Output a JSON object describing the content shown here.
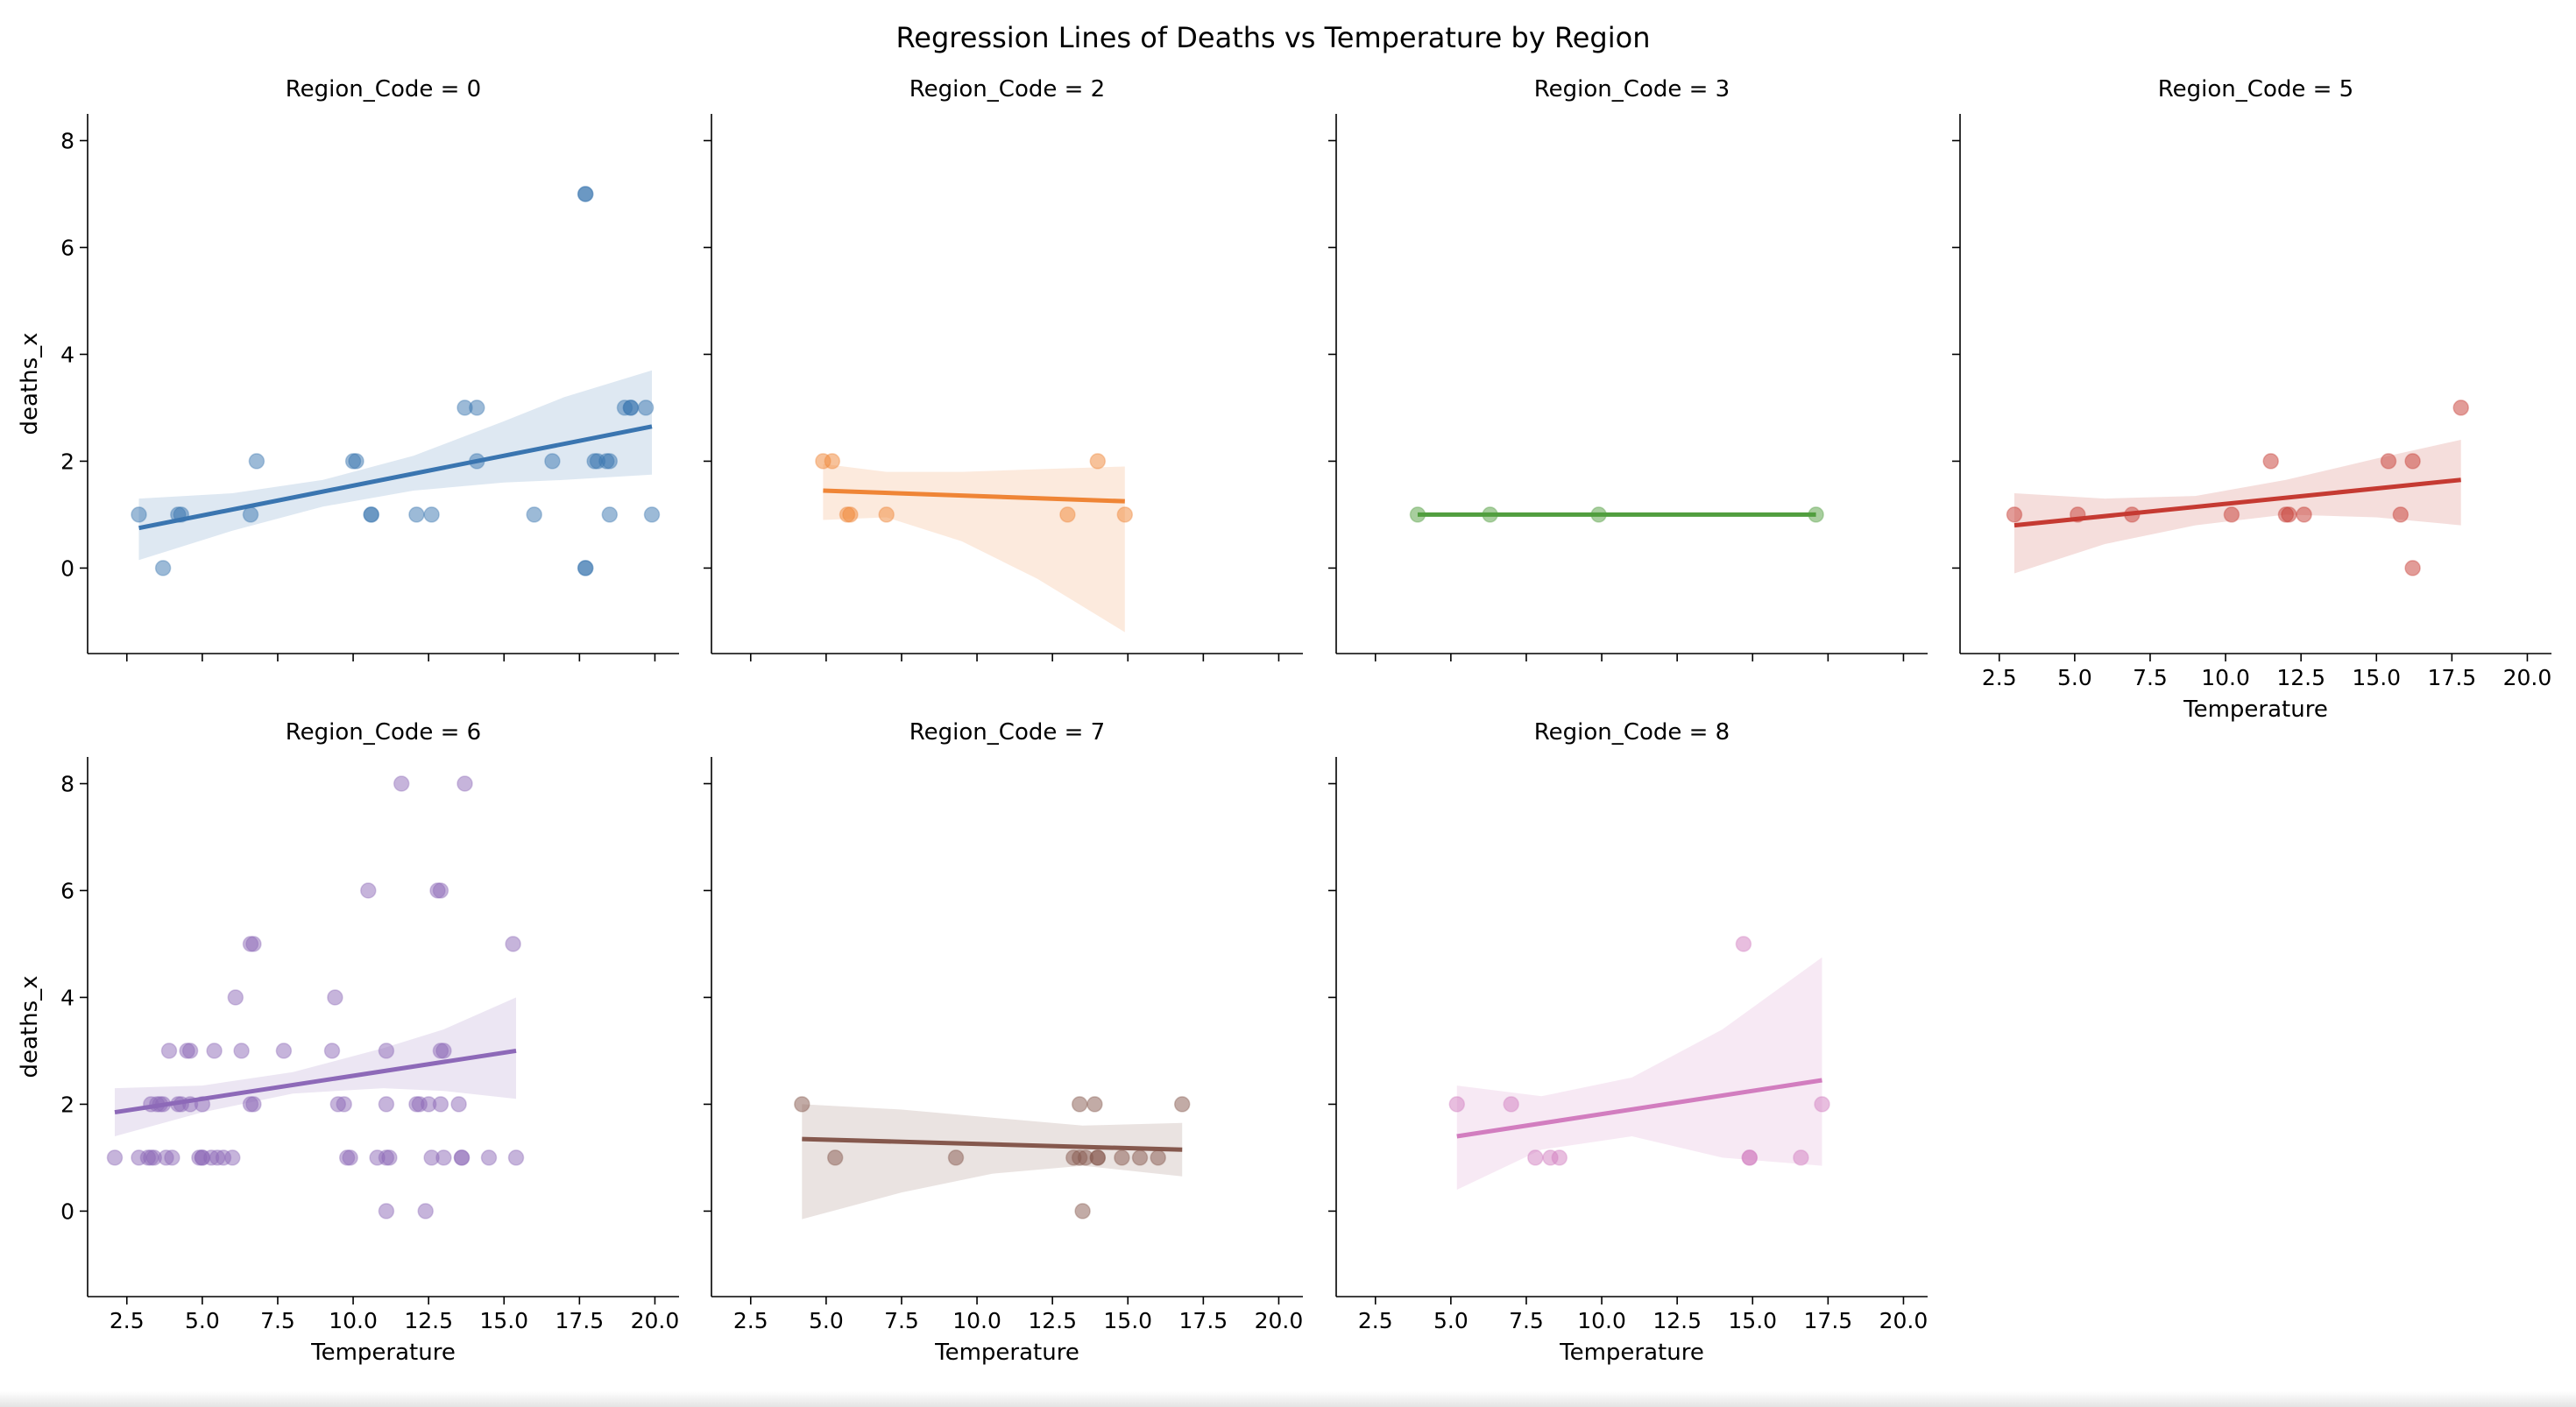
{
  "title": "Regression Lines of Deaths vs Temperature by Region",
  "xlabel": "Temperature",
  "ylabel": "deaths_x",
  "chart_data": {
    "type": "scatter",
    "title": "Regression Lines of Deaths vs Temperature by Region",
    "xlabel": "Temperature",
    "ylabel": "deaths_x",
    "xlim": [
      1.2,
      20.8
    ],
    "ylim": [
      -1.6,
      8.5
    ],
    "xticks": [
      "2.5",
      "5.0",
      "7.5",
      "10.0",
      "12.5",
      "15.0",
      "17.5",
      "20.0"
    ],
    "yticks": [
      "0",
      "2",
      "4",
      "6",
      "8"
    ],
    "grid": false,
    "legend": "none",
    "panels": [
      {
        "label": "Region_Code = 0",
        "color": "#3a75b0",
        "points": [
          [
            2.9,
            1
          ],
          [
            3.7,
            0
          ],
          [
            4.2,
            1
          ],
          [
            4.3,
            1
          ],
          [
            6.6,
            1
          ],
          [
            6.8,
            2
          ],
          [
            10.0,
            2
          ],
          [
            10.1,
            2
          ],
          [
            10.6,
            1
          ],
          [
            10.6,
            1
          ],
          [
            12.1,
            1
          ],
          [
            12.6,
            1
          ],
          [
            13.7,
            3
          ],
          [
            14.1,
            3
          ],
          [
            14.1,
            2
          ],
          [
            16.0,
            1
          ],
          [
            16.6,
            2
          ],
          [
            17.7,
            7
          ],
          [
            17.7,
            7
          ],
          [
            17.7,
            0
          ],
          [
            17.7,
            0
          ],
          [
            18.0,
            2
          ],
          [
            18.1,
            2
          ],
          [
            18.4,
            2
          ],
          [
            18.5,
            2
          ],
          [
            18.5,
            1
          ],
          [
            19.0,
            3
          ],
          [
            19.2,
            3
          ],
          [
            19.2,
            3
          ],
          [
            19.7,
            3
          ],
          [
            19.9,
            1
          ]
        ],
        "regression": {
          "x": [
            2.9,
            19.9
          ],
          "y": [
            0.75,
            2.65
          ]
        },
        "ci": {
          "x": [
            2.9,
            6.0,
            9.0,
            12.0,
            15.0,
            17.0,
            19.9
          ],
          "lower": [
            0.15,
            0.7,
            1.15,
            1.45,
            1.6,
            1.65,
            1.75
          ],
          "upper": [
            1.3,
            1.4,
            1.65,
            2.1,
            2.75,
            3.2,
            3.7
          ]
        }
      },
      {
        "label": "Region_Code = 2",
        "color": "#ef8536",
        "points": [
          [
            4.9,
            2
          ],
          [
            5.2,
            2
          ],
          [
            5.7,
            1
          ],
          [
            5.8,
            1
          ],
          [
            7.0,
            1
          ],
          [
            13.0,
            1
          ],
          [
            14.0,
            2
          ],
          [
            14.9,
            1
          ]
        ],
        "regression": {
          "x": [
            4.9,
            14.9
          ],
          "y": [
            1.45,
            1.25
          ]
        },
        "ci": {
          "x": [
            4.9,
            7.0,
            9.5,
            12.0,
            14.9
          ],
          "lower": [
            0.9,
            0.95,
            0.5,
            -0.2,
            -1.2
          ],
          "upper": [
            1.95,
            1.8,
            1.8,
            1.85,
            1.9
          ]
        }
      },
      {
        "label": "Region_Code = 3",
        "color": "#519e3e",
        "points": [
          [
            3.9,
            1
          ],
          [
            6.3,
            1
          ],
          [
            9.9,
            1
          ],
          [
            17.1,
            1
          ]
        ],
        "regression": {
          "x": [
            3.9,
            17.1
          ],
          "y": [
            1.0,
            1.0
          ]
        },
        "ci": {
          "x": [
            3.9,
            17.1
          ],
          "lower": [
            0.98,
            0.98
          ],
          "upper": [
            1.02,
            1.02
          ]
        }
      },
      {
        "label": "Region_Code = 5",
        "color": "#c53a32",
        "points": [
          [
            3.0,
            1
          ],
          [
            5.1,
            1
          ],
          [
            6.9,
            1
          ],
          [
            10.2,
            1
          ],
          [
            11.5,
            2
          ],
          [
            12.0,
            1
          ],
          [
            12.1,
            1
          ],
          [
            12.6,
            1
          ],
          [
            15.4,
            2
          ],
          [
            15.8,
            1
          ],
          [
            16.2,
            2
          ],
          [
            16.2,
            0
          ],
          [
            17.8,
            3
          ]
        ],
        "regression": {
          "x": [
            3.0,
            17.8
          ],
          "y": [
            0.8,
            1.65
          ]
        },
        "ci": {
          "x": [
            3.0,
            6.0,
            9.0,
            12.0,
            15.0,
            17.8
          ],
          "lower": [
            -0.1,
            0.45,
            0.8,
            1.0,
            0.95,
            0.8
          ],
          "upper": [
            1.4,
            1.3,
            1.35,
            1.65,
            2.05,
            2.4
          ]
        }
      },
      {
        "label": "Region_Code = 6",
        "color": "#8d69b8",
        "points": [
          [
            2.1,
            1
          ],
          [
            2.9,
            1
          ],
          [
            3.2,
            1
          ],
          [
            3.3,
            2
          ],
          [
            3.3,
            1
          ],
          [
            3.4,
            1
          ],
          [
            3.5,
            2
          ],
          [
            3.6,
            2
          ],
          [
            3.7,
            2
          ],
          [
            3.8,
            1
          ],
          [
            3.9,
            3
          ],
          [
            4.0,
            1
          ],
          [
            4.2,
            2
          ],
          [
            4.3,
            2
          ],
          [
            4.5,
            3
          ],
          [
            4.6,
            2
          ],
          [
            4.6,
            3
          ],
          [
            4.9,
            1
          ],
          [
            5.0,
            1
          ],
          [
            5.0,
            1
          ],
          [
            5.0,
            2
          ],
          [
            5.3,
            1
          ],
          [
            5.4,
            3
          ],
          [
            5.5,
            1
          ],
          [
            5.7,
            1
          ],
          [
            6.0,
            1
          ],
          [
            6.1,
            4
          ],
          [
            6.3,
            3
          ],
          [
            6.6,
            5
          ],
          [
            6.6,
            2
          ],
          [
            6.7,
            2
          ],
          [
            6.7,
            5
          ],
          [
            7.7,
            3
          ],
          [
            9.3,
            3
          ],
          [
            9.4,
            4
          ],
          [
            9.5,
            2
          ],
          [
            9.7,
            2
          ],
          [
            9.8,
            1
          ],
          [
            9.9,
            1
          ],
          [
            10.5,
            6
          ],
          [
            10.8,
            1
          ],
          [
            11.1,
            0
          ],
          [
            11.1,
            3
          ],
          [
            11.1,
            2
          ],
          [
            11.1,
            1
          ],
          [
            11.2,
            1
          ],
          [
            11.6,
            8
          ],
          [
            12.1,
            2
          ],
          [
            12.2,
            2
          ],
          [
            12.4,
            0
          ],
          [
            12.5,
            2
          ],
          [
            12.6,
            1
          ],
          [
            12.8,
            6
          ],
          [
            12.9,
            6
          ],
          [
            12.9,
            3
          ],
          [
            12.9,
            2
          ],
          [
            13.0,
            1
          ],
          [
            13.0,
            3
          ],
          [
            13.5,
            2
          ],
          [
            13.6,
            1
          ],
          [
            13.6,
            1
          ],
          [
            13.7,
            8
          ],
          [
            14.5,
            1
          ],
          [
            15.3,
            5
          ],
          [
            15.4,
            1
          ]
        ],
        "regression": {
          "x": [
            2.1,
            15.4
          ],
          "y": [
            1.85,
            3.0
          ]
        },
        "ci": {
          "x": [
            2.1,
            5.0,
            8.0,
            11.0,
            13.0,
            15.4
          ],
          "lower": [
            1.4,
            1.85,
            2.2,
            2.3,
            2.25,
            2.1
          ],
          "upper": [
            2.3,
            2.35,
            2.6,
            3.05,
            3.4,
            4.0
          ]
        }
      },
      {
        "label": "Region_Code = 7",
        "color": "#85584d",
        "points": [
          [
            4.2,
            2
          ],
          [
            5.3,
            1
          ],
          [
            9.3,
            1
          ],
          [
            13.2,
            1
          ],
          [
            13.4,
            1
          ],
          [
            13.4,
            2
          ],
          [
            13.5,
            0
          ],
          [
            13.6,
            1
          ],
          [
            13.9,
            2
          ],
          [
            14.0,
            1
          ],
          [
            14.0,
            1
          ],
          [
            14.8,
            1
          ],
          [
            15.4,
            1
          ],
          [
            16.0,
            1
          ],
          [
            16.8,
            2
          ]
        ],
        "regression": {
          "x": [
            4.2,
            16.8
          ],
          "y": [
            1.35,
            1.15
          ]
        },
        "ci": {
          "x": [
            4.2,
            7.5,
            10.5,
            13.5,
            16.8
          ],
          "lower": [
            -0.15,
            0.35,
            0.7,
            0.85,
            0.65
          ],
          "upper": [
            2.0,
            1.9,
            1.75,
            1.6,
            1.65
          ]
        }
      },
      {
        "label": "Region_Code = 8",
        "color": "#d27dbf",
        "points": [
          [
            5.2,
            2
          ],
          [
            7.0,
            2
          ],
          [
            7.8,
            1
          ],
          [
            8.3,
            1
          ],
          [
            8.6,
            1
          ],
          [
            14.7,
            5
          ],
          [
            14.9,
            1
          ],
          [
            14.9,
            1
          ],
          [
            16.6,
            1
          ],
          [
            17.3,
            2
          ]
        ],
        "regression": {
          "x": [
            5.2,
            17.3
          ],
          "y": [
            1.4,
            2.45
          ]
        },
        "ci": {
          "x": [
            5.2,
            8.0,
            11.0,
            14.0,
            17.3
          ],
          "lower": [
            0.4,
            1.15,
            1.4,
            1.0,
            0.85
          ],
          "upper": [
            2.35,
            2.15,
            2.5,
            3.4,
            4.75
          ]
        }
      }
    ]
  }
}
